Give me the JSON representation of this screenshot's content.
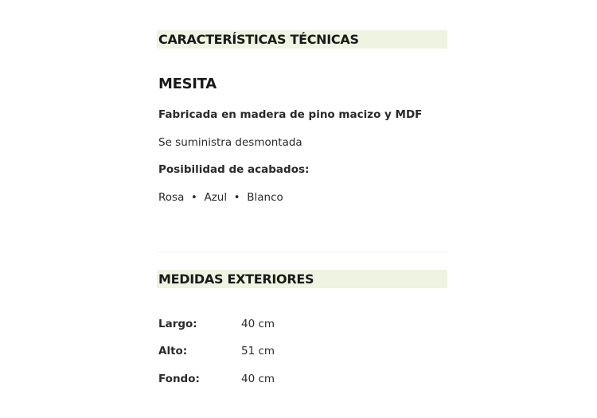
{
  "sections": {
    "technical": {
      "title": "CARACTERÍSTICAS TÉCNICAS",
      "product": "MESITA",
      "material": "Fabricada en madera de pino macizo y MDF",
      "supply": "Se suministra desmontada",
      "finishes_label": "Posibilidad de acabados:",
      "finishes": "Rosa  •  Azul  •  Blanco"
    },
    "measures": {
      "title": "MEDIDAS EXTERIORES",
      "rows": [
        {
          "label": "Largo:",
          "value": "40 cm"
        },
        {
          "label": "Alto:",
          "value": "51 cm"
        },
        {
          "label": "Fondo:",
          "value": "40 cm"
        }
      ]
    }
  },
  "colors": {
    "header_band": "#eef3e2"
  }
}
